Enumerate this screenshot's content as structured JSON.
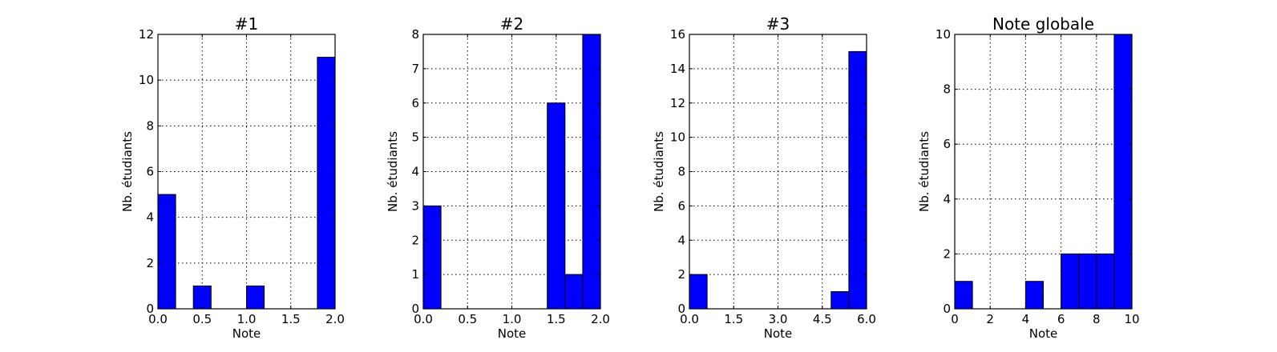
{
  "chart_data": [
    {
      "type": "bar",
      "title": "#1",
      "xlabel": "Note",
      "ylabel": "Nb. étudiants",
      "xlim": [
        0,
        2
      ],
      "ylim": [
        0,
        12
      ],
      "xticks": [
        0,
        0.5,
        1,
        1.5,
        2
      ],
      "xtick_labels": [
        "0.0",
        "0.5",
        "1.0",
        "1.5",
        "2.0"
      ],
      "yticks": [
        0,
        2,
        4,
        6,
        8,
        10,
        12
      ],
      "ytick_labels": [
        "0",
        "2",
        "4",
        "6",
        "8",
        "10",
        "12"
      ],
      "grid": true,
      "bar_color": "#0000ff",
      "bins": [
        {
          "x0": 0.0,
          "x1": 0.2,
          "value": 5
        },
        {
          "x0": 0.2,
          "x1": 0.4,
          "value": 0
        },
        {
          "x0": 0.4,
          "x1": 0.6,
          "value": 1
        },
        {
          "x0": 0.6,
          "x1": 0.8,
          "value": 0
        },
        {
          "x0": 0.8,
          "x1": 1.0,
          "value": 0
        },
        {
          "x0": 1.0,
          "x1": 1.2,
          "value": 1
        },
        {
          "x0": 1.2,
          "x1": 1.4,
          "value": 0
        },
        {
          "x0": 1.4,
          "x1": 1.6,
          "value": 0
        },
        {
          "x0": 1.6,
          "x1": 1.8,
          "value": 0
        },
        {
          "x0": 1.8,
          "x1": 2.0,
          "value": 11
        }
      ]
    },
    {
      "type": "bar",
      "title": "#2",
      "xlabel": "Note",
      "ylabel": "Nb. étudiants",
      "xlim": [
        0,
        2
      ],
      "ylim": [
        0,
        8
      ],
      "xticks": [
        0,
        0.5,
        1,
        1.5,
        2
      ],
      "xtick_labels": [
        "0.0",
        "0.5",
        "1.0",
        "1.5",
        "2.0"
      ],
      "yticks": [
        0,
        1,
        2,
        3,
        4,
        5,
        6,
        7,
        8
      ],
      "ytick_labels": [
        "0",
        "1",
        "2",
        "3",
        "4",
        "5",
        "6",
        "7",
        "8"
      ],
      "grid": true,
      "bar_color": "#0000ff",
      "bins": [
        {
          "x0": 0.0,
          "x1": 0.2,
          "value": 3
        },
        {
          "x0": 0.2,
          "x1": 0.4,
          "value": 0
        },
        {
          "x0": 0.4,
          "x1": 0.6,
          "value": 0
        },
        {
          "x0": 0.6,
          "x1": 0.8,
          "value": 0
        },
        {
          "x0": 0.8,
          "x1": 1.0,
          "value": 0
        },
        {
          "x0": 1.0,
          "x1": 1.2,
          "value": 0
        },
        {
          "x0": 1.2,
          "x1": 1.4,
          "value": 0
        },
        {
          "x0": 1.4,
          "x1": 1.6,
          "value": 6
        },
        {
          "x0": 1.6,
          "x1": 1.8,
          "value": 1
        },
        {
          "x0": 1.8,
          "x1": 2.0,
          "value": 8
        }
      ]
    },
    {
      "type": "bar",
      "title": "#3",
      "xlabel": "Note",
      "ylabel": "Nb. étudiants",
      "xlim": [
        0,
        6
      ],
      "ylim": [
        0,
        16
      ],
      "xticks": [
        0,
        1.5,
        3,
        4.5,
        6
      ],
      "xtick_labels": [
        "0.0",
        "1.5",
        "3.0",
        "4.5",
        "6.0"
      ],
      "yticks": [
        0,
        2,
        4,
        6,
        8,
        10,
        12,
        14,
        16
      ],
      "ytick_labels": [
        "0",
        "2",
        "4",
        "6",
        "8",
        "10",
        "12",
        "14",
        "16"
      ],
      "grid": true,
      "bar_color": "#0000ff",
      "bins": [
        {
          "x0": 0.0,
          "x1": 0.6,
          "value": 2
        },
        {
          "x0": 0.6,
          "x1": 1.2,
          "value": 0
        },
        {
          "x0": 1.2,
          "x1": 1.8,
          "value": 0
        },
        {
          "x0": 1.8,
          "x1": 2.4,
          "value": 0
        },
        {
          "x0": 2.4,
          "x1": 3.0,
          "value": 0
        },
        {
          "x0": 3.0,
          "x1": 3.6,
          "value": 0
        },
        {
          "x0": 3.6,
          "x1": 4.2,
          "value": 0
        },
        {
          "x0": 4.2,
          "x1": 4.8,
          "value": 0
        },
        {
          "x0": 4.8,
          "x1": 5.4,
          "value": 1
        },
        {
          "x0": 5.4,
          "x1": 6.0,
          "value": 15
        }
      ]
    },
    {
      "type": "bar",
      "title": "Note globale",
      "xlabel": "Note",
      "ylabel": "Nb. étudiants",
      "xlim": [
        0,
        10
      ],
      "ylim": [
        0,
        10
      ],
      "xticks": [
        0,
        2,
        4,
        6,
        8,
        10
      ],
      "xtick_labels": [
        "0",
        "2",
        "4",
        "6",
        "8",
        "10"
      ],
      "yticks": [
        0,
        2,
        4,
        6,
        8,
        10
      ],
      "ytick_labels": [
        "0",
        "2",
        "4",
        "6",
        "8",
        "10"
      ],
      "grid": true,
      "bar_color": "#0000ff",
      "bins": [
        {
          "x0": 0,
          "x1": 1,
          "value": 1
        },
        {
          "x0": 1,
          "x1": 2,
          "value": 0
        },
        {
          "x0": 2,
          "x1": 3,
          "value": 0
        },
        {
          "x0": 3,
          "x1": 4,
          "value": 0
        },
        {
          "x0": 4,
          "x1": 5,
          "value": 1
        },
        {
          "x0": 5,
          "x1": 6,
          "value": 0
        },
        {
          "x0": 6,
          "x1": 7,
          "value": 2
        },
        {
          "x0": 7,
          "x1": 8,
          "value": 2
        },
        {
          "x0": 8,
          "x1": 9,
          "value": 2
        },
        {
          "x0": 9,
          "x1": 10,
          "value": 10
        }
      ]
    }
  ]
}
